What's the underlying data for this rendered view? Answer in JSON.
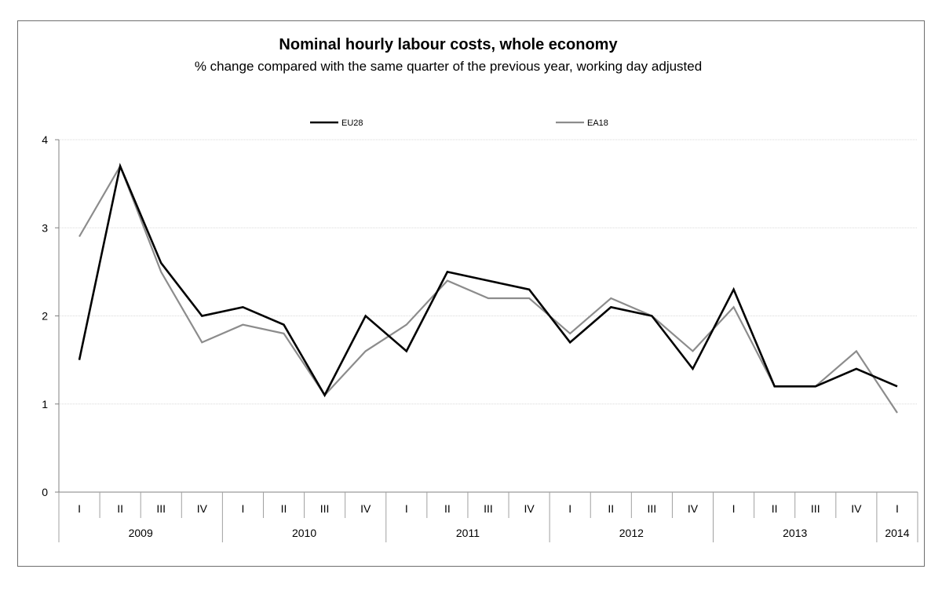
{
  "chart_data": {
    "type": "line",
    "title": "Nominal hourly labour costs, whole economy",
    "subtitle": "% change compared with the same quarter of the previous year, working day adjusted",
    "xlabel": "",
    "ylabel": "",
    "ylim": [
      0,
      4
    ],
    "yticks": [
      "0",
      "1",
      "2",
      "3",
      "4"
    ],
    "grid": true,
    "legend_position": "top",
    "categories": [
      "I",
      "II",
      "III",
      "IV",
      "I",
      "II",
      "III",
      "IV",
      "I",
      "II",
      "III",
      "IV",
      "I",
      "II",
      "III",
      "IV",
      "I",
      "II",
      "III",
      "IV",
      "I"
    ],
    "years": [
      {
        "label": "2009",
        "quarters": 4
      },
      {
        "label": "2010",
        "quarters": 4
      },
      {
        "label": "2011",
        "quarters": 4
      },
      {
        "label": "2012",
        "quarters": 4
      },
      {
        "label": "2013",
        "quarters": 4
      },
      {
        "label": "2014",
        "quarters": 1
      }
    ],
    "series": [
      {
        "name": "EU28",
        "color": "#000000",
        "values": [
          1.5,
          3.7,
          2.6,
          2.0,
          2.1,
          1.9,
          1.1,
          2.0,
          1.6,
          2.5,
          2.4,
          2.3,
          1.7,
          2.1,
          2.0,
          1.4,
          2.3,
          1.2,
          1.2,
          1.4,
          1.2
        ]
      },
      {
        "name": "EA18",
        "color": "#8c8c8c",
        "values": [
          2.9,
          3.7,
          2.5,
          1.7,
          1.9,
          1.8,
          1.1,
          1.6,
          1.9,
          2.4,
          2.2,
          2.2,
          1.8,
          2.2,
          2.0,
          1.6,
          2.1,
          1.2,
          1.2,
          1.6,
          0.9
        ]
      }
    ]
  }
}
